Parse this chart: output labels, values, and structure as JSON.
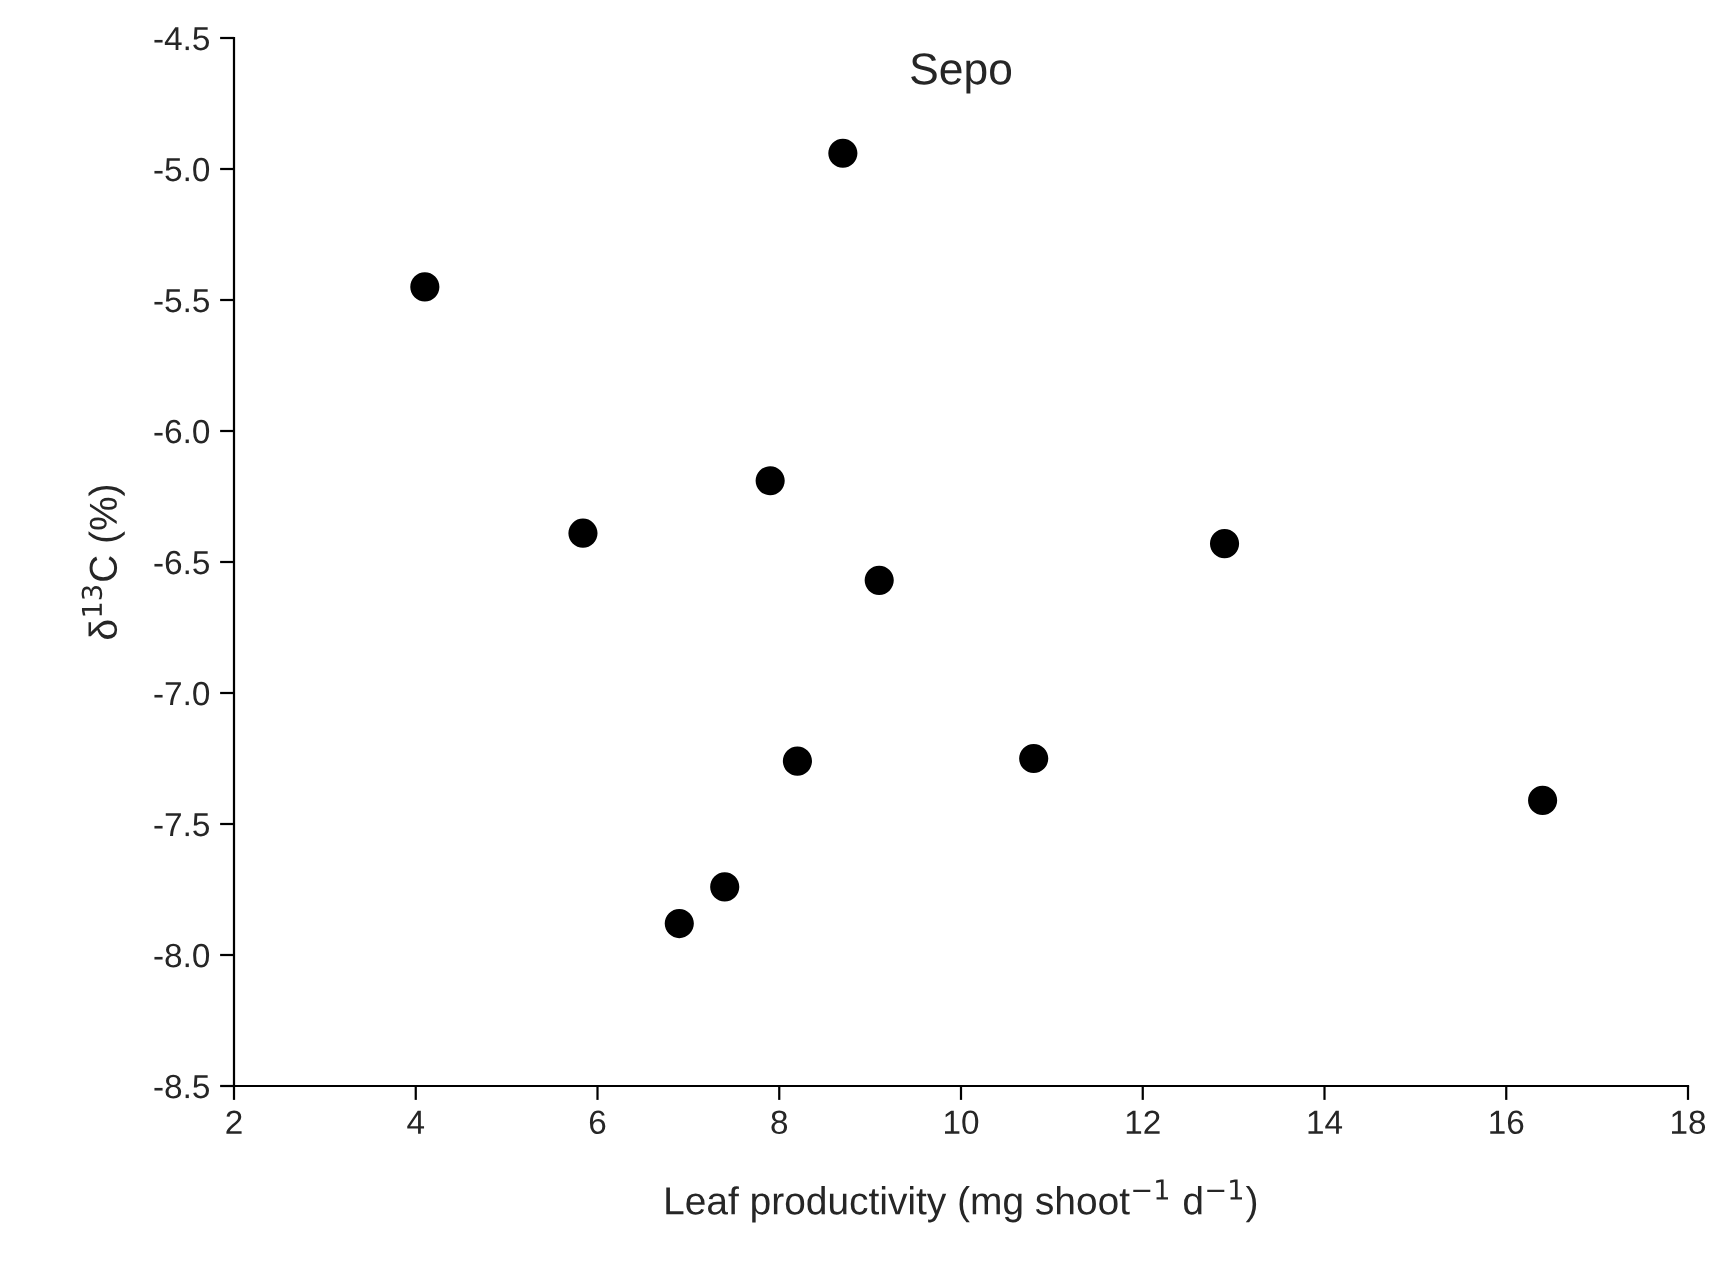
{
  "chart_data": {
    "type": "scatter",
    "title": "Sepo",
    "xlabel": "Leaf productivity (mg shoot$^{−1}$ d$^{−1}$)",
    "ylabel": "δ$^{13}$C (%)",
    "x": [
      4.1,
      8.7,
      5.84,
      7.9,
      9.1,
      12.9,
      8.2,
      10.8,
      16.4,
      7.4,
      6.9
    ],
    "series": [
      {
        "color": "#000000",
        "values": [
          -5.45,
          -4.94,
          -6.39,
          -6.19,
          -6.57,
          -6.43,
          -7.26,
          -7.25,
          -7.41,
          -7.74,
          -7.88
        ]
      }
    ],
    "xlim": [
      2,
      18
    ],
    "xticks": [
      2,
      4,
      6,
      8,
      10,
      12,
      14,
      16,
      18
    ],
    "ylim": [
      -8.5,
      -4.5
    ],
    "yticks": [
      {
        "value": -8.5,
        "label": "-8.5"
      },
      {
        "value": -8.0,
        "label": "-8.0"
      },
      {
        "value": -7.5,
        "label": "-7.5"
      },
      {
        "value": -7.0,
        "label": "-7.0"
      },
      {
        "value": -6.5,
        "label": "-6.5"
      },
      {
        "value": -6.0,
        "label": "-6.0"
      },
      {
        "value": -5.5,
        "label": "-5.5"
      },
      {
        "value": -5.0,
        "label": "-5.0"
      },
      {
        "value": -4.5,
        "label": "-4.5"
      }
    ],
    "marker": "circle",
    "grid": false,
    "legend": false
  }
}
